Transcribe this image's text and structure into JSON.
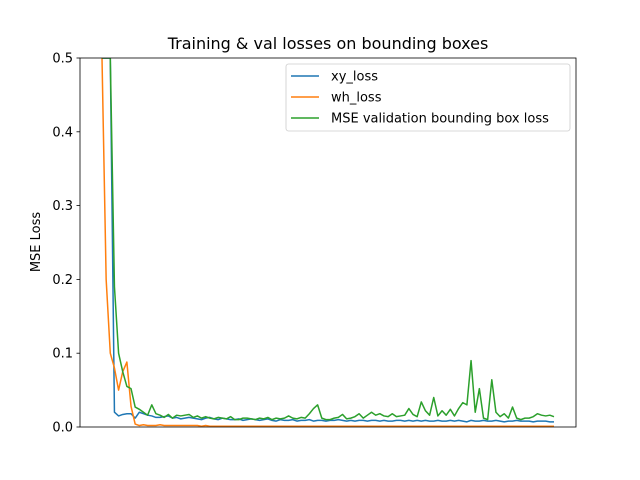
{
  "chart_data": {
    "type": "line",
    "title": "Training & val losses on bounding boxes",
    "xlabel": "",
    "ylabel": "MSE Loss",
    "ylim": [
      0,
      0.5
    ],
    "yticks": [
      "0.0",
      "0.1",
      "0.2",
      "0.3",
      "0.4",
      "0.5"
    ],
    "xticks_visible": false,
    "grid": false,
    "legend_position": "top-right",
    "series": [
      {
        "name": "xy_loss",
        "color": "#1f77b4",
        "values": [
          0.5,
          0.5,
          0.5,
          0.02,
          0.015,
          0.017,
          0.018,
          0.018,
          0.012,
          0.02,
          0.018,
          0.016,
          0.015,
          0.013,
          0.013,
          0.014,
          0.015,
          0.012,
          0.013,
          0.011,
          0.012,
          0.013,
          0.012,
          0.011,
          0.01,
          0.012,
          0.013,
          0.011,
          0.01,
          0.012,
          0.011,
          0.01,
          0.01,
          0.011,
          0.009,
          0.01,
          0.011,
          0.01,
          0.009,
          0.01,
          0.011,
          0.009,
          0.008,
          0.01,
          0.009,
          0.009,
          0.01,
          0.008,
          0.009,
          0.009,
          0.01,
          0.008,
          0.009,
          0.009,
          0.008,
          0.009,
          0.009,
          0.01,
          0.009,
          0.008,
          0.009,
          0.008,
          0.009,
          0.009,
          0.008,
          0.009,
          0.009,
          0.008,
          0.009,
          0.008,
          0.008,
          0.009,
          0.009,
          0.008,
          0.009,
          0.008,
          0.009,
          0.008,
          0.009,
          0.008,
          0.008,
          0.009,
          0.008,
          0.008,
          0.009,
          0.008,
          0.009,
          0.008,
          0.007,
          0.009,
          0.008,
          0.008,
          0.009,
          0.008,
          0.008,
          0.009,
          0.008,
          0.007,
          0.008,
          0.008,
          0.009,
          0.008,
          0.008,
          0.008,
          0.007,
          0.008,
          0.008,
          0.008,
          0.007,
          0.007
        ]
      },
      {
        "name": "wh_loss",
        "color": "#ff7f0e",
        "values": [
          0.5,
          0.2,
          0.1,
          0.08,
          0.05,
          0.075,
          0.088,
          0.028,
          0.004,
          0.002,
          0.003,
          0.002,
          0.002,
          0.002,
          0.003,
          0.002,
          0.002,
          0.002,
          0.002,
          0.002,
          0.002,
          0.002,
          0.002,
          0.002,
          0.001,
          0.002,
          0.001,
          0.001,
          0.001,
          0.001,
          0.001,
          0.001,
          0.001,
          0.001,
          0.001,
          0.001,
          0.001,
          0.001,
          0.001,
          0.001,
          0.001,
          0.001,
          0.001,
          0.001,
          0.001,
          0.001,
          0.001,
          0.001,
          0.001,
          0.001,
          0.001,
          0.001,
          0.001,
          0.001,
          0.001,
          0.001,
          0.001,
          0.001,
          0.001,
          0.001,
          0.001,
          0.001,
          0.001,
          0.001,
          0.001,
          0.001,
          0.001,
          0.001,
          0.001,
          0.001,
          0.001,
          0.001,
          0.001,
          0.001,
          0.001,
          0.001,
          0.001,
          0.001,
          0.001,
          0.001,
          0.001,
          0.001,
          0.001,
          0.001,
          0.001,
          0.001,
          0.001,
          0.001,
          0.001,
          0.001,
          0.001,
          0.001,
          0.001,
          0.001,
          0.001,
          0.001,
          0.001,
          0.001,
          0.001,
          0.001,
          0.001,
          0.001,
          0.001,
          0.001,
          0.001,
          0.001,
          0.001,
          0.001,
          0.001,
          0.001
        ]
      },
      {
        "name": "MSE validation bounding box loss",
        "color": "#2ca02c",
        "values": [
          0.5,
          0.5,
          0.5,
          0.19,
          0.1,
          0.075,
          0.055,
          0.052,
          0.027,
          0.024,
          0.02,
          0.016,
          0.03,
          0.018,
          0.016,
          0.013,
          0.017,
          0.012,
          0.016,
          0.015,
          0.016,
          0.017,
          0.013,
          0.015,
          0.012,
          0.014,
          0.012,
          0.011,
          0.013,
          0.012,
          0.011,
          0.014,
          0.01,
          0.01,
          0.012,
          0.012,
          0.011,
          0.01,
          0.012,
          0.011,
          0.013,
          0.01,
          0.012,
          0.011,
          0.012,
          0.015,
          0.012,
          0.011,
          0.013,
          0.012,
          0.018,
          0.025,
          0.03,
          0.012,
          0.01,
          0.01,
          0.012,
          0.013,
          0.017,
          0.011,
          0.012,
          0.014,
          0.018,
          0.012,
          0.016,
          0.02,
          0.016,
          0.018,
          0.015,
          0.014,
          0.018,
          0.014,
          0.015,
          0.016,
          0.025,
          0.017,
          0.014,
          0.034,
          0.022,
          0.016,
          0.04,
          0.015,
          0.022,
          0.016,
          0.024,
          0.015,
          0.025,
          0.033,
          0.03,
          0.09,
          0.02,
          0.052,
          0.012,
          0.01,
          0.064,
          0.02,
          0.014,
          0.018,
          0.012,
          0.027,
          0.012,
          0.01,
          0.012,
          0.012,
          0.014,
          0.018,
          0.016,
          0.015,
          0.016,
          0.014
        ]
      }
    ]
  }
}
